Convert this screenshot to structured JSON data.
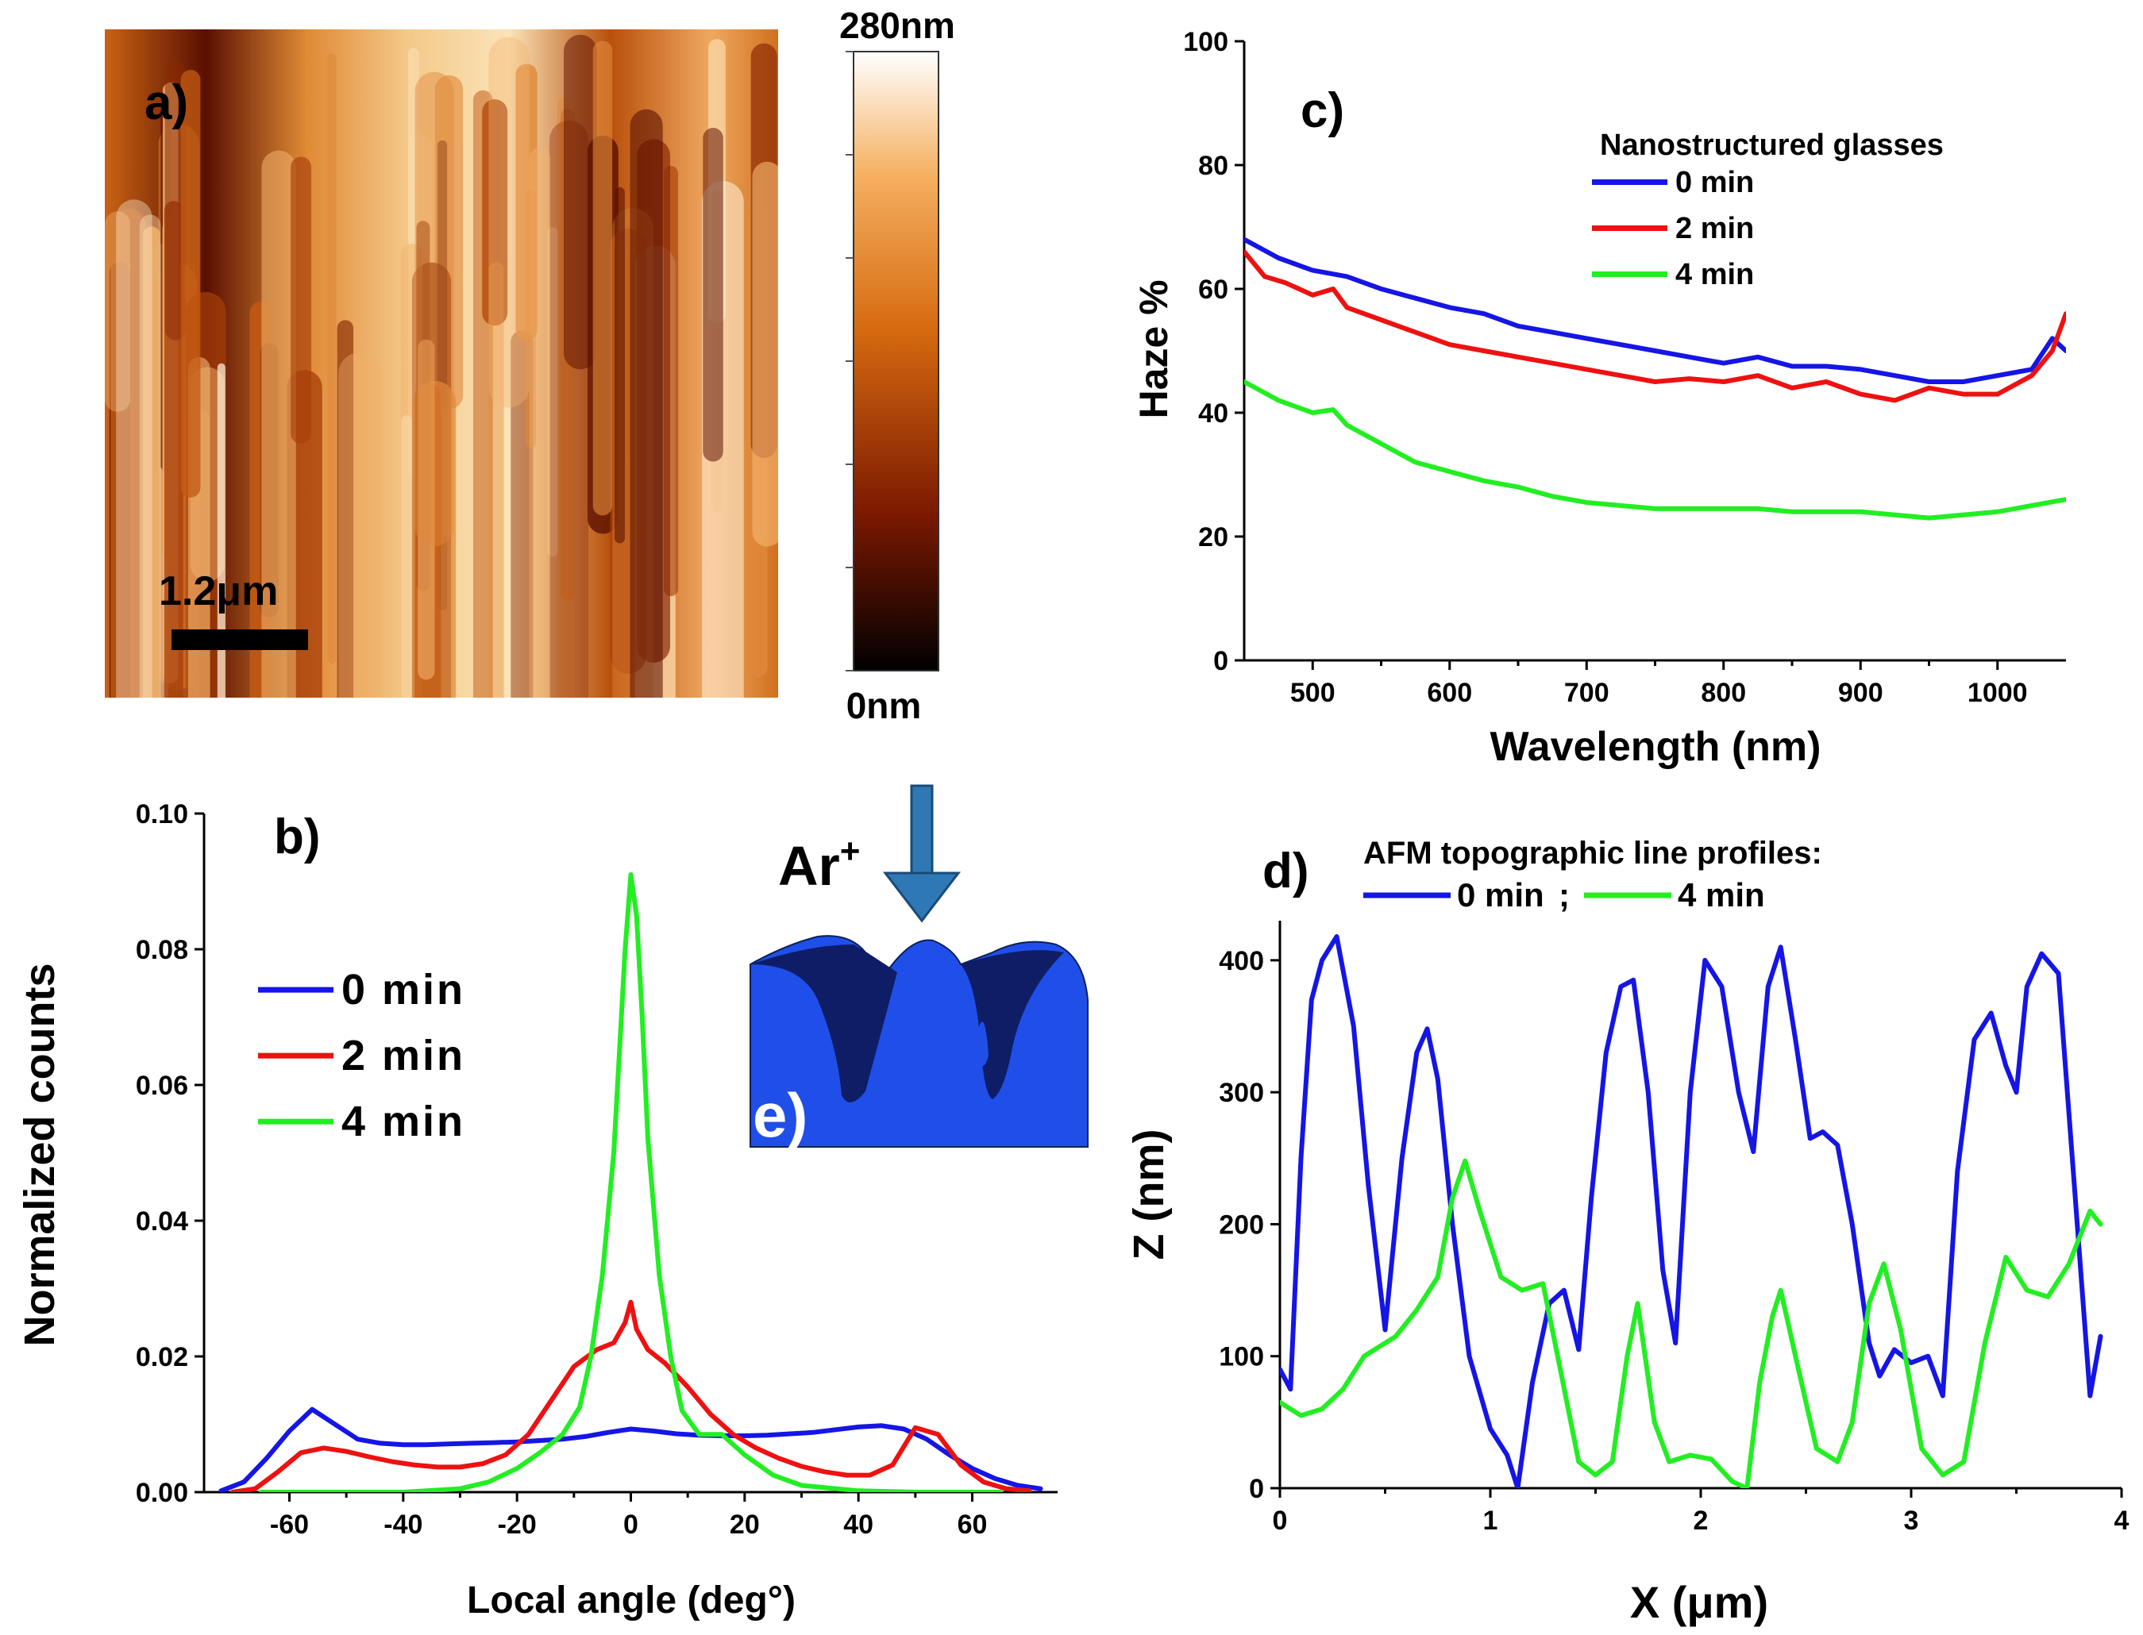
{
  "afm_image": {
    "panel_label": "a)",
    "scalebar_label": "1.2μm",
    "colorbar_max_label": "280nm",
    "colorbar_min_label": "0nm",
    "colorscale": [
      "#000000",
      "#7a1800",
      "#d66a10",
      "#f5b060",
      "#ffffff"
    ]
  },
  "inset": {
    "panel_label": "e)",
    "ion_label": "Ar",
    "ion_charge": "+",
    "arrow_color": "#2e79b5",
    "body_color": "#1f4fe8",
    "shade_color": "#0e1d66"
  },
  "chart_data": [
    {
      "id": "b",
      "type": "line",
      "panel_label": "b)",
      "xlabel": "Local angle (deg°)",
      "ylabel": "Normalized counts",
      "xlim": [
        -75,
        75
      ],
      "ylim": [
        0,
        0.1
      ],
      "xticks": [
        -60,
        -40,
        -20,
        0,
        20,
        40,
        60
      ],
      "xtick_labels": [
        "-60",
        "-40",
        "-20",
        "0",
        "20",
        "40",
        "60"
      ],
      "yticks": [
        0,
        0.02,
        0.04,
        0.06,
        0.08,
        0.1
      ],
      "ytick_labels": [
        "0.00",
        "0.02",
        "0.04",
        "0.06",
        "0.08",
        "0.10"
      ],
      "legend_position": "center-left",
      "series": [
        {
          "name": "0 min",
          "color": "#1515e6",
          "x": [
            -72,
            -68,
            -64,
            -60,
            -56,
            -52,
            -48,
            -44,
            -40,
            -36,
            -32,
            -28,
            -24,
            -20,
            -16,
            -12,
            -8,
            -4,
            0,
            4,
            8,
            12,
            16,
            20,
            24,
            28,
            32,
            36,
            40,
            44,
            48,
            52,
            56,
            60,
            64,
            68,
            72
          ],
          "y": [
            0.0002,
            0.0015,
            0.005,
            0.009,
            0.0122,
            0.01,
            0.0078,
            0.0072,
            0.007,
            0.007,
            0.0071,
            0.0072,
            0.0073,
            0.0074,
            0.0076,
            0.0078,
            0.0082,
            0.0088,
            0.0093,
            0.009,
            0.0086,
            0.0084,
            0.0083,
            0.0083,
            0.0084,
            0.0086,
            0.0088,
            0.0092,
            0.0096,
            0.0098,
            0.0093,
            0.0078,
            0.0055,
            0.0035,
            0.002,
            0.001,
            0.0005
          ]
        },
        {
          "name": "2 min",
          "color": "#ee1111",
          "x": [
            -70,
            -66,
            -62,
            -58,
            -54,
            -50,
            -46,
            -42,
            -38,
            -34,
            -30,
            -26,
            -22,
            -18,
            -14,
            -10,
            -6,
            -3,
            -1,
            0,
            1,
            3,
            6,
            10,
            14,
            18,
            22,
            26,
            30,
            34,
            38,
            42,
            46,
            50,
            54,
            58,
            62,
            66,
            70
          ],
          "y": [
            0,
            0.0005,
            0.003,
            0.0058,
            0.0065,
            0.006,
            0.0052,
            0.0045,
            0.004,
            0.0037,
            0.0037,
            0.0042,
            0.0055,
            0.0085,
            0.0135,
            0.0185,
            0.021,
            0.022,
            0.025,
            0.028,
            0.024,
            0.021,
            0.019,
            0.0155,
            0.0115,
            0.0085,
            0.0065,
            0.005,
            0.0038,
            0.003,
            0.0025,
            0.0025,
            0.004,
            0.0095,
            0.0085,
            0.004,
            0.0015,
            0.0005,
            0.0002
          ]
        },
        {
          "name": "4 min",
          "color": "#22ee22",
          "x": [
            -65,
            -50,
            -40,
            -30,
            -25,
            -20,
            -16,
            -12,
            -9,
            -7,
            -5,
            -3,
            -2,
            -1,
            0,
            1,
            2,
            3,
            5,
            7,
            9,
            12,
            16,
            20,
            25,
            30,
            40,
            50,
            60,
            65
          ],
          "y": [
            0,
            0,
            0,
            0.0005,
            0.0015,
            0.0035,
            0.0058,
            0.0085,
            0.0125,
            0.02,
            0.032,
            0.05,
            0.065,
            0.08,
            0.091,
            0.085,
            0.07,
            0.052,
            0.032,
            0.02,
            0.012,
            0.0085,
            0.0085,
            0.0055,
            0.0025,
            0.001,
            0.0002,
            0,
            0,
            0
          ]
        }
      ]
    },
    {
      "id": "c",
      "type": "line",
      "panel_label": "c)",
      "xlabel": "Wavelength (nm)",
      "ylabel": "Haze %",
      "xlim": [
        450,
        1050
      ],
      "ylim": [
        0,
        100
      ],
      "xticks": [
        500,
        600,
        700,
        800,
        900,
        1000
      ],
      "xtick_labels": [
        "500",
        "600",
        "700",
        "800",
        "900",
        "1000"
      ],
      "yticks": [
        0,
        20,
        40,
        60,
        80,
        100
      ],
      "ytick_labels": [
        "0",
        "20",
        "40",
        "60",
        "80",
        "100"
      ],
      "legend_title": "Nanostructured glasses",
      "legend_position": "top-right",
      "series": [
        {
          "name": "0 min",
          "color": "#1515e6",
          "x": [
            450,
            475,
            500,
            525,
            550,
            575,
            600,
            625,
            650,
            675,
            700,
            725,
            750,
            775,
            800,
            825,
            850,
            875,
            900,
            925,
            950,
            975,
            1000,
            1025,
            1040,
            1050
          ],
          "y": [
            68,
            65,
            63,
            62,
            60,
            58.5,
            57,
            56,
            54,
            53,
            52,
            51,
            50,
            49,
            48,
            49,
            47.5,
            47.5,
            47,
            46,
            45,
            45,
            46,
            47,
            52,
            50
          ]
        },
        {
          "name": "2 min",
          "color": "#ee1111",
          "x": [
            450,
            465,
            480,
            500,
            515,
            525,
            550,
            575,
            600,
            625,
            650,
            675,
            700,
            725,
            750,
            775,
            800,
            825,
            850,
            875,
            900,
            925,
            950,
            975,
            1000,
            1025,
            1040,
            1050
          ],
          "y": [
            66,
            62,
            61,
            59,
            60,
            57,
            55,
            53,
            51,
            50,
            49,
            48,
            47,
            46,
            45,
            45.5,
            45,
            46,
            44,
            45,
            43,
            42,
            44,
            43,
            43,
            46,
            50,
            56
          ]
        },
        {
          "name": "4 min",
          "color": "#22ee22",
          "x": [
            450,
            475,
            500,
            515,
            525,
            550,
            575,
            600,
            625,
            650,
            675,
            700,
            725,
            750,
            775,
            800,
            825,
            850,
            875,
            900,
            925,
            950,
            975,
            1000,
            1025,
            1050
          ],
          "y": [
            45,
            42,
            40,
            40.5,
            38,
            35,
            32,
            30.5,
            29,
            28,
            26.5,
            25.5,
            25,
            24.5,
            24.5,
            24.5,
            24.5,
            24,
            24,
            24,
            23.5,
            23,
            23.5,
            24,
            25,
            26
          ]
        }
      ]
    },
    {
      "id": "d",
      "type": "line",
      "panel_label": "d)",
      "xlabel": "X (μm)",
      "ylabel": "Z (nm)",
      "xlim": [
        0,
        4
      ],
      "ylim": [
        0,
        430
      ],
      "xticks": [
        0,
        1,
        2,
        3,
        4
      ],
      "xtick_labels": [
        "0",
        "1",
        "2",
        "3",
        "4"
      ],
      "yticks": [
        0,
        100,
        200,
        300,
        400
      ],
      "ytick_labels": [
        "0",
        "100",
        "200",
        "300",
        "400"
      ],
      "legend_title": "AFM topographic line profiles:",
      "legend_separator": ";",
      "legend_position": "top",
      "series": [
        {
          "name": "0 min",
          "color": "#1515e6",
          "x": [
            0,
            0.05,
            0.1,
            0.15,
            0.2,
            0.27,
            0.35,
            0.42,
            0.5,
            0.58,
            0.65,
            0.7,
            0.75,
            0.82,
            0.9,
            1.0,
            1.08,
            1.13,
            1.2,
            1.28,
            1.35,
            1.42,
            1.48,
            1.55,
            1.62,
            1.68,
            1.75,
            1.82,
            1.88,
            1.95,
            2.02,
            2.1,
            2.18,
            2.25,
            2.32,
            2.38,
            2.45,
            2.52,
            2.58,
            2.65,
            2.72,
            2.8,
            2.85,
            2.92,
            3.0,
            3.08,
            3.15,
            3.22,
            3.3,
            3.38,
            3.45,
            3.5,
            3.55,
            3.62,
            3.7,
            3.78,
            3.85,
            3.9
          ],
          "y": [
            90,
            75,
            250,
            370,
            400,
            418,
            350,
            230,
            120,
            250,
            330,
            348,
            310,
            200,
            100,
            45,
            25,
            0,
            80,
            140,
            150,
            105,
            220,
            330,
            380,
            385,
            300,
            165,
            110,
            300,
            400,
            380,
            300,
            255,
            380,
            410,
            340,
            265,
            270,
            260,
            200,
            110,
            85,
            105,
            95,
            100,
            70,
            240,
            340,
            360,
            320,
            300,
            380,
            405,
            390,
            220,
            70,
            115
          ]
        },
        {
          "name": "4 min",
          "color": "#22ee22",
          "x": [
            0,
            0.1,
            0.2,
            0.3,
            0.4,
            0.45,
            0.55,
            0.65,
            0.75,
            0.82,
            0.88,
            0.95,
            1.05,
            1.15,
            1.25,
            1.32,
            1.42,
            1.5,
            1.58,
            1.65,
            1.7,
            1.78,
            1.85,
            1.95,
            2.05,
            2.15,
            2.22,
            2.28,
            2.34,
            2.38,
            2.45,
            2.55,
            2.65,
            2.72,
            2.8,
            2.87,
            2.95,
            3.05,
            3.15,
            3.25,
            3.35,
            3.45,
            3.55,
            3.65,
            3.75,
            3.85,
            3.9
          ],
          "y": [
            65,
            55,
            60,
            75,
            100,
            105,
            115,
            135,
            160,
            220,
            248,
            210,
            160,
            150,
            155,
            100,
            20,
            10,
            20,
            100,
            140,
            50,
            20,
            25,
            22,
            5,
            0,
            80,
            130,
            150,
            100,
            30,
            20,
            50,
            140,
            170,
            120,
            30,
            10,
            20,
            110,
            175,
            150,
            145,
            170,
            210,
            200
          ]
        }
      ]
    }
  ]
}
